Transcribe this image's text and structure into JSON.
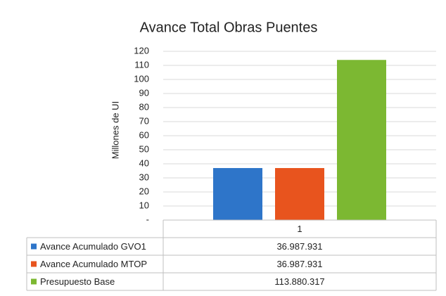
{
  "chart_data": {
    "type": "bar",
    "title": "Avance Total Obras Puentes",
    "y_label": "Millones de UI",
    "categories": [
      "1"
    ],
    "series": [
      {
        "name": "Avance Acumulado GVO1",
        "color": "#2e75c9",
        "values": [
          36.987931
        ],
        "value_labels": [
          "36.987.931"
        ]
      },
      {
        "name": "Avance Acumulado MTOP",
        "color": "#e8541e",
        "values": [
          36.987931
        ],
        "value_labels": [
          "36.987.931"
        ]
      },
      {
        "name": "Presupuesto Base",
        "color": "#7cb832",
        "values": [
          113.880317
        ],
        "value_labels": [
          "113.880.317"
        ]
      }
    ],
    "ylim": [
      0,
      120
    ],
    "yticks": [
      {
        "value": 0,
        "label": "-"
      },
      10,
      20,
      30,
      40,
      50,
      60,
      70,
      80,
      90,
      100,
      110,
      120
    ],
    "grid": true
  }
}
